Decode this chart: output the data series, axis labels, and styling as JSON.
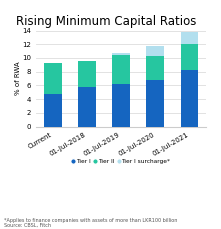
{
  "title": "Rising Minimum Capital Ratios",
  "categories": [
    "Current",
    "01-Jul-2018",
    "01-Jul-2019",
    "01-Jul-2020",
    "01-Jul-2021"
  ],
  "tier1": [
    4.75,
    5.75,
    6.25,
    6.75,
    8.25
  ],
  "tier2": [
    4.5,
    3.75,
    4.25,
    3.5,
    3.75
  ],
  "surcharge": [
    0.0,
    0.0,
    0.25,
    1.5,
    1.75
  ],
  "color_tier1": "#1565c0",
  "color_tier2": "#26c6a0",
  "color_surcharge": "#b2dfee",
  "ylabel": "% of RWA",
  "ylim": [
    0,
    14
  ],
  "yticks": [
    0,
    2,
    4,
    6,
    8,
    10,
    12,
    14
  ],
  "legend_labels": [
    "Tier I",
    "Tier II",
    "Tier I surcharge*"
  ],
  "footnote1": "*Applies to finance companies with assets of more than LKR100 billion",
  "footnote2": "Source: CBSL, Fitch",
  "bg_color": "#ffffff",
  "title_fontsize": 8.5,
  "label_fontsize": 5.0
}
